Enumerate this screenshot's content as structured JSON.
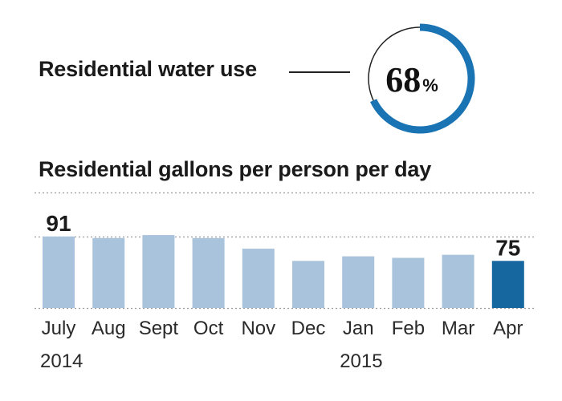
{
  "header": {
    "label": "Residential water use",
    "percent_value": "68",
    "percent_sign": "%",
    "gauge_fraction": 0.68
  },
  "colors": {
    "gauge": "#1a73b3",
    "bar_default": "#a9c3dd",
    "bar_highlight": "#16679f"
  },
  "chart_data": {
    "type": "bar",
    "title": "Residential gallons per person per day",
    "categories": [
      "July",
      "Aug",
      "Sept",
      "Oct",
      "Nov",
      "Dec",
      "Jan",
      "Feb",
      "Mar",
      "Apr"
    ],
    "values": [
      91,
      90,
      92,
      90,
      83,
      75,
      78,
      77,
      79,
      75
    ],
    "labeled": {
      "July": "91",
      "Apr": "75"
    },
    "highlight": "Apr",
    "ylim": [
      44,
      120
    ],
    "gridlines": [
      120,
      91,
      44
    ],
    "years": [
      {
        "text": "2014",
        "category": "July"
      },
      {
        "text": "2015",
        "category": "Jan"
      }
    ]
  }
}
